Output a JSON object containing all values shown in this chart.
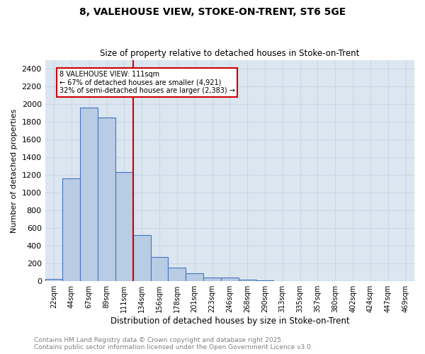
{
  "title_line1": "8, VALEHOUSE VIEW, STOKE-ON-TRENT, ST6 5GE",
  "title_line2": "Size of property relative to detached houses in Stoke-on-Trent",
  "xlabel": "Distribution of detached houses by size in Stoke-on-Trent",
  "ylabel": "Number of detached properties",
  "bin_labels": [
    "22sqm",
    "44sqm",
    "67sqm",
    "89sqm",
    "111sqm",
    "134sqm",
    "156sqm",
    "178sqm",
    "201sqm",
    "223sqm",
    "246sqm",
    "268sqm",
    "290sqm",
    "313sqm",
    "335sqm",
    "357sqm",
    "380sqm",
    "402sqm",
    "424sqm",
    "447sqm",
    "469sqm"
  ],
  "bar_heights": [
    25,
    1160,
    1960,
    1850,
    1230,
    520,
    275,
    150,
    90,
    45,
    40,
    15,
    10,
    5,
    3,
    2,
    2,
    2,
    1,
    1,
    1
  ],
  "bar_color": "#b8cce4",
  "bar_edge_color": "#4472c4",
  "vline_index": 4,
  "vline_color": "#cc0000",
  "annotation_text": "8 VALEHOUSE VIEW: 111sqm\n← 67% of detached houses are smaller (4,921)\n32% of semi-detached houses are larger (2,383) →",
  "annotation_box_color": "#cc0000",
  "ylim": [
    0,
    2500
  ],
  "yticks": [
    0,
    200,
    400,
    600,
    800,
    1000,
    1200,
    1400,
    1600,
    1800,
    2000,
    2200,
    2400
  ],
  "grid_color": "#c8d8e8",
  "background_color": "#dce6f0",
  "footer_line1": "Contains HM Land Registry data © Crown copyright and database right 2025.",
  "footer_line2": "Contains public sector information licensed under the Open Government Licence v3.0."
}
